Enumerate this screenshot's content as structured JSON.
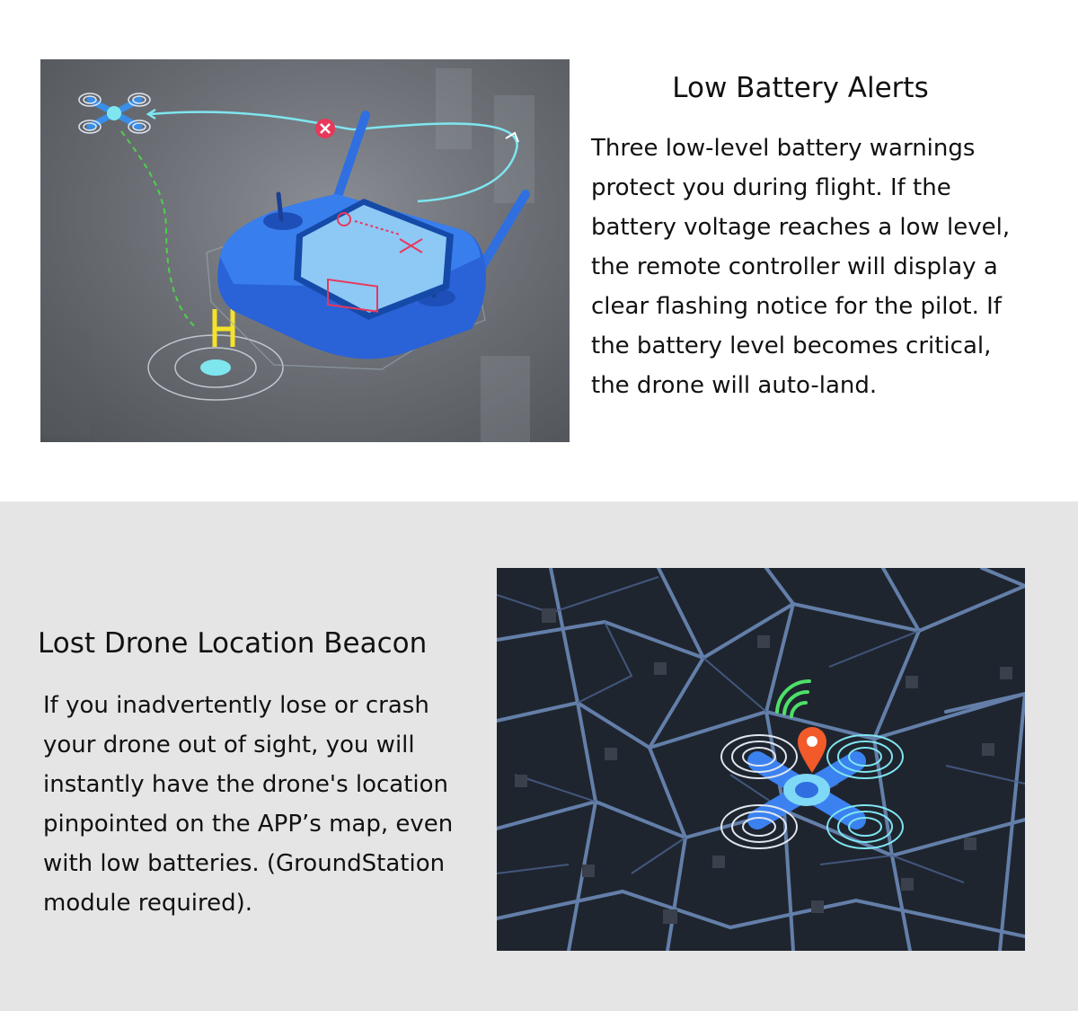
{
  "battery_section": {
    "title": "Low Battery Alerts",
    "body": "Three low-level battery warnings protect you during flight. If the battery voltage reaches a low level, the remote controller will display a clear flashing notice for the pilot. If the battery level becomes critical, the drone will auto-land."
  },
  "beacon_section": {
    "title": "Lost Drone Location Beacon",
    "body": "If you inadvertently lose or crash your drone out of sight, you will instantly have the drone's location pinpointed on the APP’s map, even with low batteries. (GroundStation module required)."
  },
  "colors": {
    "accent_blue": "#2f6fe0",
    "path_cyan": "#7fe6f0",
    "landing_yellow": "#f5e22a",
    "alert_red": "#e8385a",
    "pin_orange": "#f25a2a",
    "signal_green": "#4ee06a",
    "top_background": "#ffffff",
    "bottom_background": "#e5e5e5"
  },
  "icons": {
    "return_home": "helipad-h-icon",
    "warning": "close-x-icon",
    "location": "map-pin-icon",
    "signal": "wifi-signal-icon"
  }
}
